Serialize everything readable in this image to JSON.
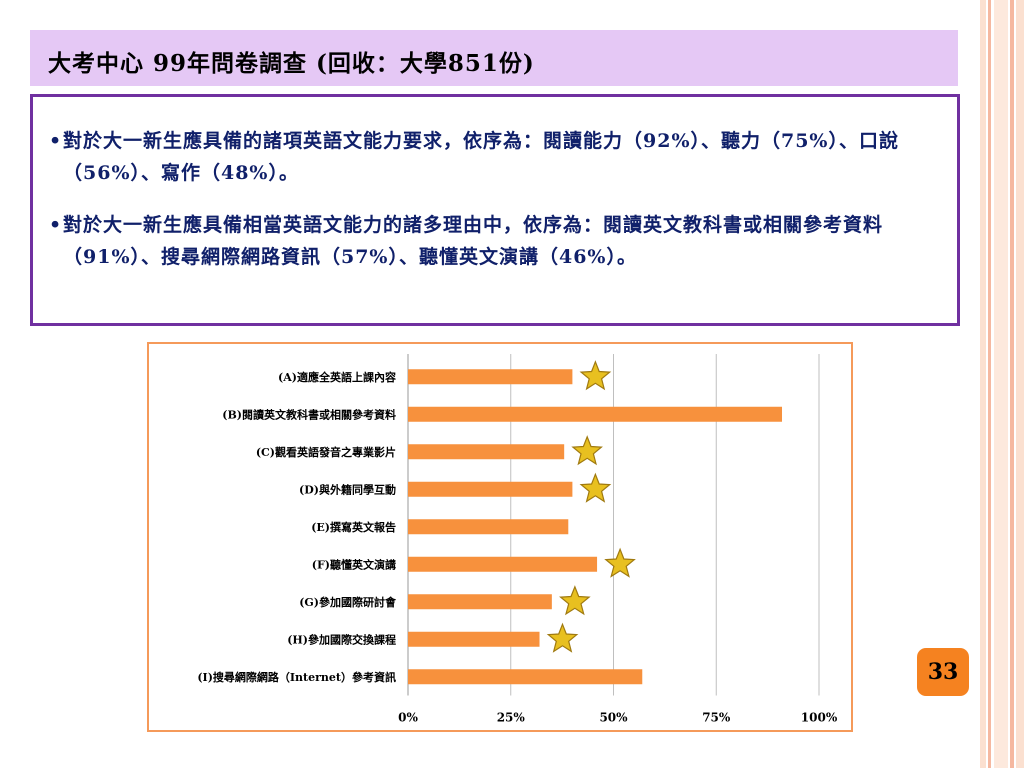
{
  "slide": {
    "title": "大考中心 99年問卷調查 (回收：大學851份)",
    "bullets": [
      "對於大一新生應具備的諸項英語文能力要求，依序為：閱讀能力（92%）、聽力（75%）、口說（56%）、寫作（48%）。",
      "對於大一新生應具備相當英語文能力的諸多理由中，依序為：閱讀英文教科書或相關參考資料（91%）、搜尋網際網路資訊（57%）、聽懂英文演講（46%）。"
    ],
    "page_number": "33"
  },
  "colors": {
    "bar": "#f7913d",
    "title_bg": "#e5c8f5",
    "text_box_border": "#7030a0",
    "chart_border": "#f59a5a",
    "page_badge": "#f58220",
    "star": "#e8c020"
  },
  "chart_data": {
    "type": "bar",
    "orientation": "horizontal",
    "categories": [
      "(A)適應全英語上課內容",
      "(B)閱讀英文教科書或相關參考資料",
      "(C)觀看英語發音之專業影片",
      "(D)與外籍同學互動",
      "(E)撰寫英文報告",
      "(F)聽懂英文演講",
      "(G)參加國際研討會",
      "(H)參加國際交換課程",
      "(I)搜尋網際網路（Internet）參考資訊"
    ],
    "values": [
      40,
      91,
      38,
      40,
      39,
      46,
      35,
      32,
      57
    ],
    "starred": [
      true,
      false,
      true,
      true,
      false,
      true,
      true,
      true,
      false
    ],
    "xlim": [
      0,
      100
    ],
    "xticks": [
      "0%",
      "25%",
      "50%",
      "75%",
      "100%"
    ],
    "grid": true,
    "legend": "none"
  }
}
